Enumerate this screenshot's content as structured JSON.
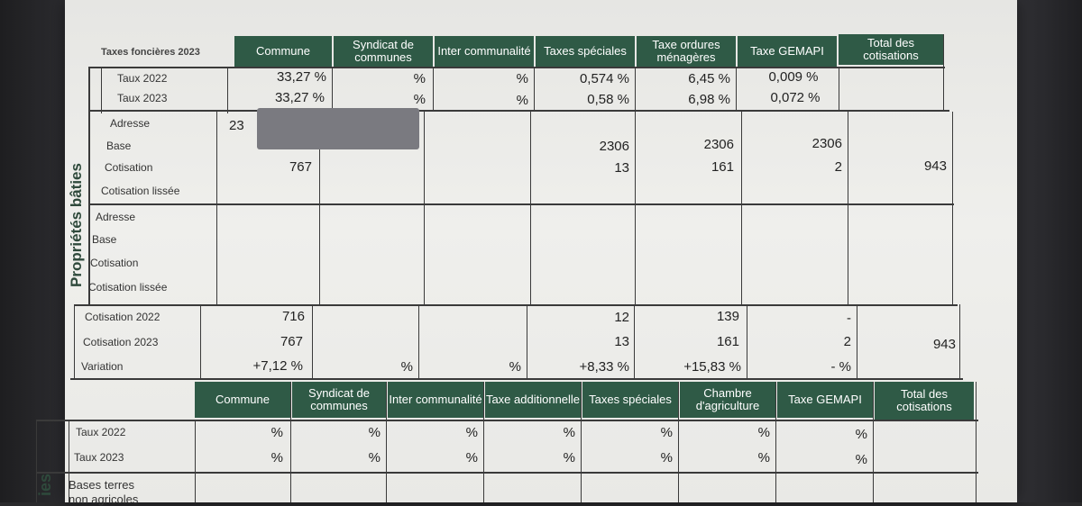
{
  "table1": {
    "corner_title": "Taxes foncières 2023",
    "headers": [
      "Commune",
      "Syndicat de communes",
      "Inter communalité",
      "Taxes spéciales",
      "Taxe ordures ménagères",
      "Taxe GEMAPI",
      "Total des cotisations"
    ],
    "rate_labels": [
      "Taux 2022",
      "Taux 2023"
    ],
    "rates_2022": [
      "33,27 %",
      "%",
      "%",
      "0,574 %",
      "6,45 %",
      "0,009 %",
      ""
    ],
    "rates_2023": [
      "33,27 %",
      "%",
      "%",
      "0,58 %",
      "6,98 %",
      "0,072 %",
      ""
    ],
    "section_vertical_label": "Propriétés bâties",
    "block1": {
      "labels": [
        "Adresse",
        "Base",
        "Cotisation",
        "Cotisation lissée"
      ],
      "address_value": "23",
      "base": [
        "",
        "",
        "",
        "2306",
        "2306",
        "2306",
        ""
      ],
      "cotisation": [
        "767",
        "",
        "",
        "13",
        "161",
        "2",
        "943"
      ]
    },
    "block2": {
      "labels": [
        "Adresse",
        "Base",
        "Cotisation",
        "Cotisation lissée"
      ]
    },
    "summary": {
      "labels": [
        "Cotisation 2022",
        "Cotisation 2023",
        "Variation"
      ],
      "cotisation_2022": [
        "716",
        "",
        "",
        "12",
        "139",
        "-",
        ""
      ],
      "cotisation_2023": [
        "767",
        "",
        "",
        "13",
        "161",
        "2",
        "943"
      ],
      "variation": [
        "+7,12 %",
        "%",
        "%",
        "+8,33 %",
        "+15,83 %",
        "- %",
        ""
      ]
    }
  },
  "table2": {
    "headers": [
      "Commune",
      "Syndicat de communes",
      "Inter communalité",
      "Taxe additionnelle",
      "Taxes spéciales",
      "Chambre d'agriculture",
      "Taxe GEMAPI",
      "Total des cotisations"
    ],
    "rate_labels": [
      "Taux 2022",
      "Taux 2023"
    ],
    "rates_2022": [
      "%",
      "%",
      "%",
      "%",
      "%",
      "%",
      "%",
      ""
    ],
    "rates_2023": [
      "%",
      "%",
      "%",
      "%",
      "%",
      "%",
      "%",
      ""
    ],
    "next_row_label": "Bases terres",
    "next_row_label_cut": "non agricoles",
    "section_vertical_label_cut": "ies"
  }
}
